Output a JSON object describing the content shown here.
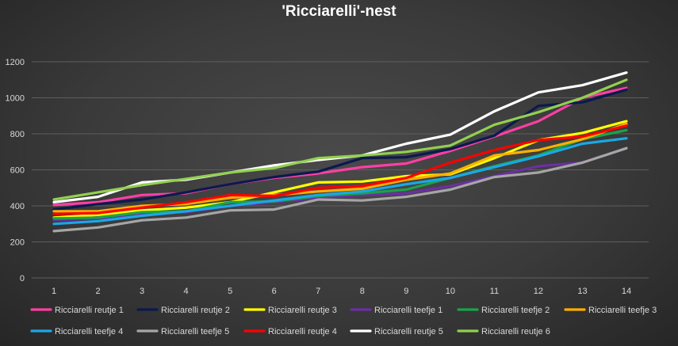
{
  "chart_data": {
    "type": "line",
    "title": "'Ricciarelli'-nest",
    "xlabel": "",
    "ylabel": "",
    "x": [
      1,
      2,
      3,
      4,
      5,
      6,
      7,
      8,
      9,
      10,
      11,
      12,
      13,
      14
    ],
    "ylim": [
      0,
      1200
    ],
    "yticks": [
      0,
      200,
      400,
      600,
      800,
      1000,
      1200
    ],
    "grid": "horizontal",
    "legend_position": "bottom",
    "series": [
      {
        "name": "Ricciarelli reutje 1",
        "color": "#ff3fa4",
        "values": [
          405,
          420,
          460,
          470,
          520,
          555,
          580,
          615,
          635,
          705,
          785,
          870,
          1000,
          1055
        ]
      },
      {
        "name": "Ricciarelli reutje 2",
        "color": "#0b1a4f",
        "values": [
          380,
          410,
          435,
          475,
          520,
          560,
          590,
          665,
          670,
          715,
          790,
          955,
          975,
          1045
        ]
      },
      {
        "name": "Ricciarelli reutje 3",
        "color": "#ffff00",
        "values": [
          335,
          350,
          375,
          390,
          420,
          475,
          530,
          535,
          565,
          575,
          665,
          765,
          805,
          870
        ]
      },
      {
        "name": "Ricciarelli teefje 1",
        "color": "#6b2fa3",
        "values": [
          320,
          330,
          355,
          365,
          400,
          420,
          445,
          460,
          470,
          510,
          565,
          620,
          640,
          720
        ]
      },
      {
        "name": "Ricciarelli teefje 2",
        "color": "#1aa34a",
        "values": [
          330,
          335,
          365,
          370,
          420,
          425,
          455,
          470,
          490,
          555,
          620,
          680,
          770,
          820
        ]
      },
      {
        "name": "Ricciarelli teefje 3",
        "color": "#ffb000",
        "values": [
          370,
          370,
          400,
          410,
          445,
          460,
          480,
          495,
          545,
          580,
          680,
          710,
          770,
          855
        ]
      },
      {
        "name": "Ricciarelli teefje 4",
        "color": "#1aa8e6",
        "values": [
          300,
          315,
          345,
          370,
          400,
          430,
          460,
          480,
          520,
          555,
          615,
          675,
          745,
          775
        ]
      },
      {
        "name": "Ricciarelli teefje 5",
        "color": "#a6a6a6",
        "values": [
          260,
          280,
          320,
          335,
          375,
          380,
          435,
          430,
          450,
          490,
          560,
          585,
          640,
          720
        ]
      },
      {
        "name": "Ricciarelli reutje 4",
        "color": "#ff0000",
        "values": [
          355,
          360,
          390,
          420,
          460,
          455,
          500,
          510,
          555,
          640,
          710,
          765,
          785,
          845
        ]
      },
      {
        "name": "Ricciarelli reutje 5",
        "color": "#ffffff",
        "values": [
          420,
          450,
          530,
          545,
          585,
          625,
          655,
          680,
          745,
          795,
          925,
          1030,
          1070,
          1140
        ]
      },
      {
        "name": "Ricciarelli reutje 6",
        "color": "#92d050",
        "values": [
          435,
          475,
          515,
          550,
          585,
          610,
          665,
          680,
          700,
          735,
          850,
          920,
          1000,
          1100
        ]
      }
    ]
  }
}
